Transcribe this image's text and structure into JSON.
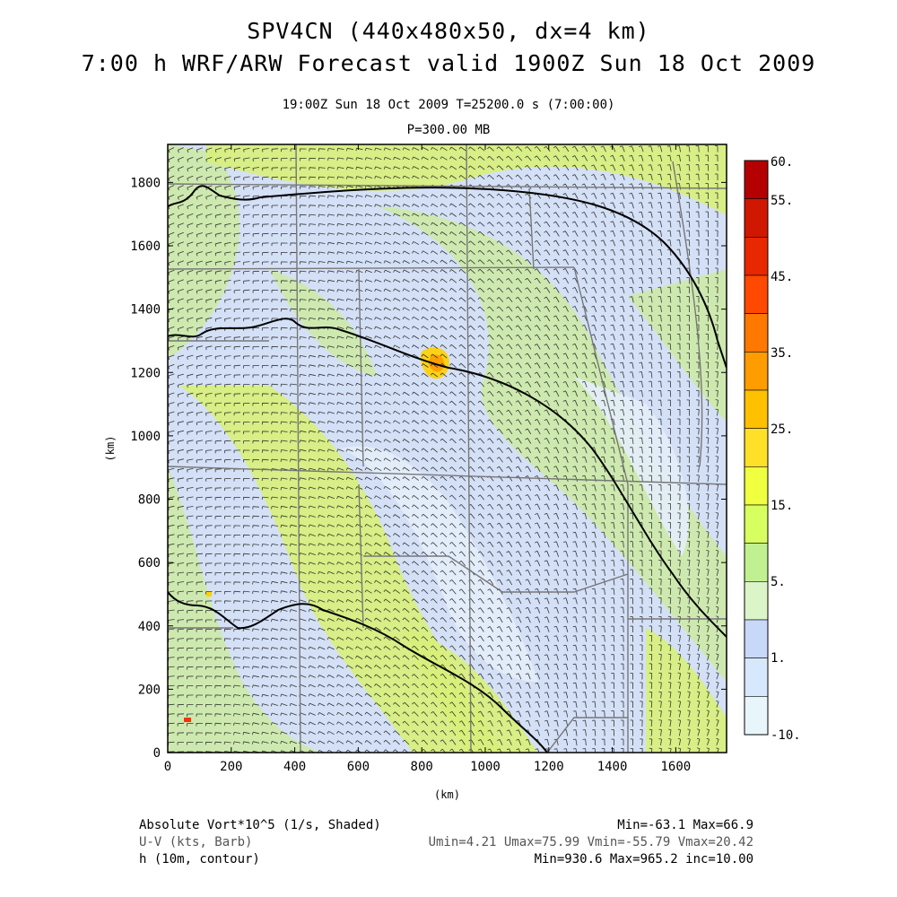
{
  "header": {
    "title_line1": "SPV4CN (440x480x50, dx=4 km)",
    "title_line2": "7:00 h WRF/ARW Forecast valid 1900Z Sun 18 Oct 2009",
    "subtitle_time": "19:00Z Sun 18 Oct 2009     T=25200.0 s (7:00:00)",
    "subtitle_level": "P=300.00 MB"
  },
  "chart_data": {
    "type": "heatmap",
    "xlabel": "(km)",
    "ylabel": "(km)",
    "xlim": [
      0,
      1760
    ],
    "ylim": [
      0,
      1920
    ],
    "x_ticks": [
      0,
      200,
      400,
      600,
      800,
      1000,
      1200,
      1400,
      1600
    ],
    "y_ticks": [
      0,
      200,
      400,
      600,
      800,
      1000,
      1200,
      1400,
      1600,
      1800
    ],
    "colorbar": {
      "labels": [
        "60.",
        "55.",
        "45.",
        "35.",
        "25.",
        "15.",
        "5.",
        "1.",
        "-10."
      ],
      "colors": [
        "#b40000",
        "#d01800",
        "#e82800",
        "#ff4800",
        "#ff7800",
        "#ff9c00",
        "#ffc000",
        "#ffe028",
        "#f0ff40",
        "#d8ff60",
        "#c0f090",
        "#dcf5c8",
        "#c8d8f8",
        "#d8e8fc",
        "#e8f6fc"
      ]
    },
    "footer_left": [
      "Absolute Vort*10^5 (1/s, Shaded)",
      "U-V (kts, Barb)",
      "h (10m, contour)"
    ],
    "footer_right": [
      "Min=-63.1 Max=66.9",
      "Umin=4.21 Umax=75.99 Vmin=-55.79 Vmax=20.42",
      "Min=930.6 Max=965.2 inc=10.00"
    ]
  }
}
